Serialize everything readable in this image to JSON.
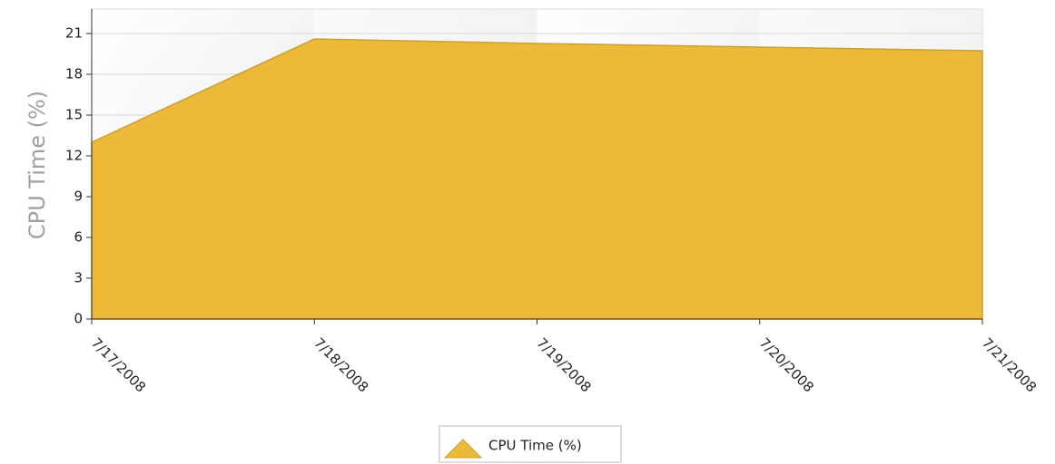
{
  "chart_data": {
    "type": "area",
    "y_label": "CPU Time (%)",
    "categories": [
      "7/17/2008",
      "7/18/2008",
      "7/19/2008",
      "7/20/2008",
      "7/21/2008"
    ],
    "series": [
      {
        "name": "CPU Time (%)",
        "color": "#ecba38",
        "values": [
          13.0,
          20.6,
          20.27,
          20.0,
          19.73
        ]
      }
    ],
    "ylim": [
      0,
      22.8
    ],
    "yticks": [
      0,
      3,
      6,
      9,
      12,
      15,
      18,
      21
    ],
    "grid": true,
    "legend": "bottom"
  }
}
